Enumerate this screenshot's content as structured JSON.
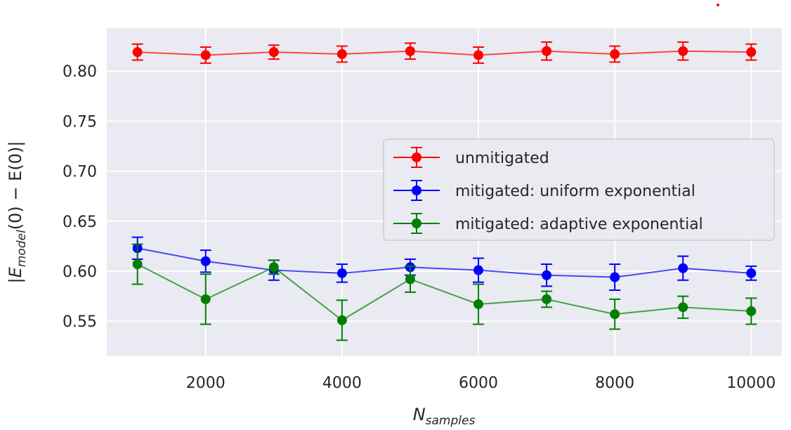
{
  "chart_data": {
    "type": "line",
    "error_bars": true,
    "x": [
      1000,
      2000,
      3000,
      4000,
      5000,
      6000,
      7000,
      8000,
      9000,
      10000
    ],
    "xticks": [
      2000,
      4000,
      6000,
      8000,
      10000
    ],
    "xlabel": {
      "main": "N",
      "sub": "samples"
    },
    "ylabel": {
      "pre": "|E",
      "sub": "model",
      "post": "(0) − E(0)|"
    },
    "yticks": [
      0.55,
      0.6,
      0.65,
      0.7,
      0.75,
      0.8
    ],
    "ytick_labels": [
      "0.55",
      "0.60",
      "0.65",
      "0.70",
      "0.75",
      "0.80"
    ],
    "xlim": [
      550,
      10450
    ],
    "ylim": [
      0.515,
      0.843
    ],
    "grid": true,
    "background": "#eaeaf2",
    "legend_position": "center-right",
    "series": [
      {
        "name": "unmitigated",
        "color": "#ff0000",
        "values": [
          0.819,
          0.816,
          0.819,
          0.817,
          0.82,
          0.816,
          0.82,
          0.817,
          0.82,
          0.819
        ],
        "errors": [
          0.008,
          0.008,
          0.007,
          0.008,
          0.008,
          0.008,
          0.009,
          0.008,
          0.009,
          0.008
        ]
      },
      {
        "name": "mitigated: uniform exponential",
        "color": "#0000ff",
        "values": [
          0.623,
          0.61,
          0.601,
          0.598,
          0.604,
          0.601,
          0.596,
          0.594,
          0.603,
          0.598
        ],
        "errors": [
          0.011,
          0.011,
          0.01,
          0.009,
          0.008,
          0.012,
          0.011,
          0.013,
          0.012,
          0.007
        ]
      },
      {
        "name": "mitigated: adaptive exponential",
        "color": "#008000",
        "values": [
          0.607,
          0.572,
          0.604,
          0.551,
          0.592,
          0.567,
          0.572,
          0.557,
          0.564,
          0.56
        ],
        "errors": [
          0.02,
          0.025,
          0.007,
          0.02,
          0.013,
          0.02,
          0.008,
          0.015,
          0.011,
          0.013
        ]
      }
    ]
  },
  "annotations": {
    "marker_color": "#ff0000"
  }
}
